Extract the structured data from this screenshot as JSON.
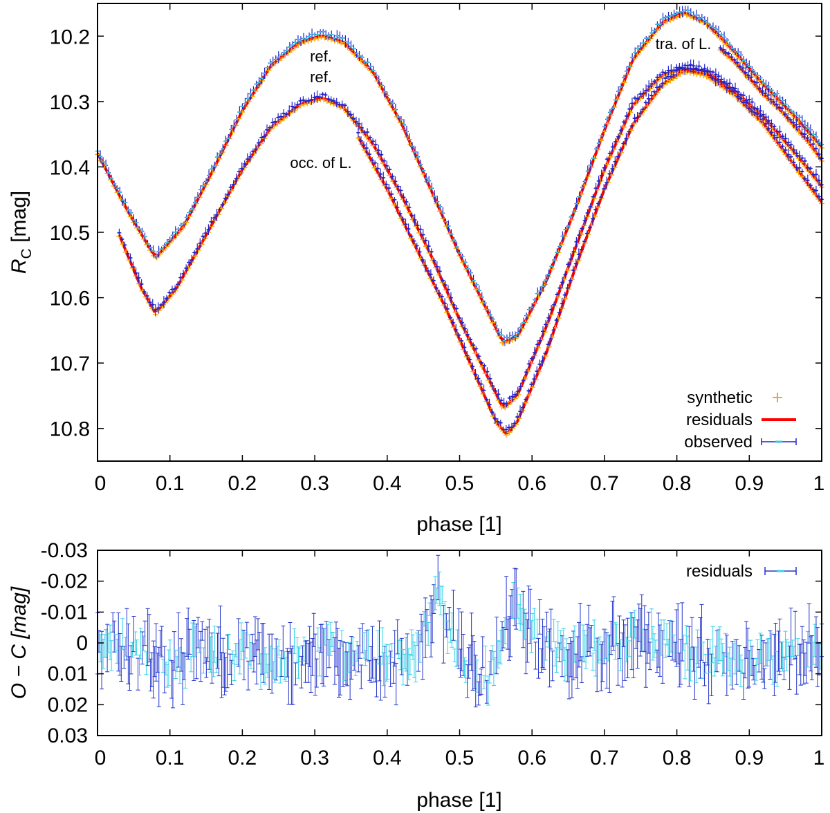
{
  "colors": {
    "synthetic": "#ffa500",
    "residuals_line": "#ff0000",
    "observed": "#2222cc",
    "observed_tick": "#33c8e0",
    "residual_dark": "#2233cc",
    "residual_light": "#33d4e8",
    "axes": "#000000"
  },
  "chart_data": [
    {
      "type": "scatter",
      "xlabel": "phase [1]",
      "ylabel_main": "R",
      "ylabel_sub": "C",
      "ylabel_unit": " [mag]",
      "xlim": [
        0,
        1
      ],
      "ylim": [
        10.85,
        10.15
      ],
      "y_inverted": true,
      "x_ticks": [
        0,
        0.1,
        0.2,
        0.3,
        0.4,
        0.5,
        0.6,
        0.7,
        0.8,
        0.9,
        1
      ],
      "x_tick_labels": [
        "0",
        "0.1",
        "0.2",
        "0.3",
        "0.4",
        "0.5",
        "0.6",
        "0.7",
        "0.8",
        "0.9",
        "1"
      ],
      "y_ticks": [
        10.2,
        10.3,
        10.4,
        10.5,
        10.6,
        10.7,
        10.8
      ],
      "y_tick_labels": [
        "10.2",
        "10.3",
        "10.4",
        "10.5",
        "10.6",
        "10.7",
        "10.8"
      ],
      "legend_position": "bottom-right",
      "legend": [
        "synthetic",
        "residuals",
        "observed"
      ],
      "annotations": [
        "ref.",
        "ref.",
        "occ. of L.",
        "tra. of L."
      ],
      "series": [
        {
          "curve": "upper reference",
          "x": [
            0,
            0.04,
            0.08,
            0.12,
            0.16,
            0.2,
            0.24,
            0.28,
            0.31,
            0.34,
            0.38,
            0.42,
            0.46,
            0.5,
            0.54,
            0.56,
            0.58,
            0.62,
            0.66,
            0.7,
            0.74,
            0.78,
            0.81,
            0.84,
            0.88,
            0.92,
            0.96,
            1
          ],
          "y": [
            10.375,
            10.46,
            10.535,
            10.485,
            10.4,
            10.31,
            10.24,
            10.205,
            10.195,
            10.205,
            10.25,
            10.33,
            10.43,
            10.53,
            10.62,
            10.665,
            10.655,
            10.57,
            10.46,
            10.34,
            10.23,
            10.175,
            10.16,
            10.175,
            10.22,
            10.27,
            10.315,
            10.365
          ]
        },
        {
          "curve": "middle reference",
          "x": [
            0.03,
            0.06,
            0.08,
            0.11,
            0.15,
            0.2,
            0.24,
            0.28,
            0.31,
            0.34,
            0.38,
            0.42,
            0.46,
            0.5,
            0.54,
            0.56,
            0.58,
            0.62,
            0.66,
            0.7,
            0.74,
            0.78,
            0.81,
            0.84,
            0.88,
            0.92,
            0.96,
            1
          ],
          "y": [
            10.5,
            10.58,
            10.62,
            10.58,
            10.5,
            10.4,
            10.335,
            10.3,
            10.29,
            10.305,
            10.36,
            10.44,
            10.53,
            10.63,
            10.72,
            10.765,
            10.745,
            10.64,
            10.52,
            10.4,
            10.3,
            10.255,
            10.245,
            10.25,
            10.28,
            10.32,
            10.37,
            10.425
          ]
        },
        {
          "curve": "occultation",
          "x": [
            0.36,
            0.4,
            0.44,
            0.48,
            0.52,
            0.55,
            0.565,
            0.58,
            0.62,
            0.66,
            0.7,
            0.74,
            0.78,
            0.81,
            0.84,
            0.88,
            0.92,
            0.96,
            1
          ],
          "y": [
            10.35,
            10.43,
            10.52,
            10.61,
            10.71,
            10.785,
            10.805,
            10.785,
            10.68,
            10.55,
            10.43,
            10.33,
            10.27,
            10.248,
            10.255,
            10.285,
            10.33,
            10.39,
            10.45
          ]
        },
        {
          "curve": "transit",
          "x": [
            0.86,
            0.88,
            0.9,
            0.92,
            0.94,
            0.96,
            0.98,
            1
          ],
          "y": [
            10.215,
            10.235,
            10.26,
            10.285,
            10.305,
            10.33,
            10.355,
            10.385
          ]
        }
      ]
    },
    {
      "type": "scatter",
      "xlabel": "phase [1]",
      "ylabel": "O − C [mag]",
      "xlim": [
        0,
        1
      ],
      "ylim": [
        0.03,
        -0.03
      ],
      "y_inverted": true,
      "x_ticks": [
        0,
        0.1,
        0.2,
        0.3,
        0.4,
        0.5,
        0.6,
        0.7,
        0.8,
        0.9,
        1
      ],
      "x_tick_labels": [
        "0",
        "0.1",
        "0.2",
        "0.3",
        "0.4",
        "0.5",
        "0.6",
        "0.7",
        "0.8",
        "0.9",
        "1"
      ],
      "y_ticks": [
        -0.03,
        -0.02,
        -0.01,
        0,
        0.01,
        0.02,
        0.03
      ],
      "y_tick_labels": [
        "-0.03",
        "-0.02",
        "-0.01",
        "0",
        "0.01",
        "0.02",
        "0.03"
      ],
      "legend_position": "top-right",
      "legend": [
        "residuals"
      ],
      "trend": {
        "x": [
          0,
          0.05,
          0.1,
          0.15,
          0.2,
          0.25,
          0.3,
          0.35,
          0.4,
          0.44,
          0.47,
          0.5,
          0.54,
          0.57,
          0.6,
          0.65,
          0.7,
          0.75,
          0.8,
          0.85,
          0.9,
          0.95,
          1
        ],
        "y": [
          0,
          0.003,
          0.006,
          0.002,
          0.004,
          0.006,
          0.002,
          0.004,
          0.006,
          0.004,
          -0.015,
          0.004,
          0.011,
          -0.01,
          -0.004,
          0.003,
          0.001,
          -0.003,
          0.002,
          0.003,
          0.007,
          0.004,
          0
        ]
      }
    }
  ]
}
